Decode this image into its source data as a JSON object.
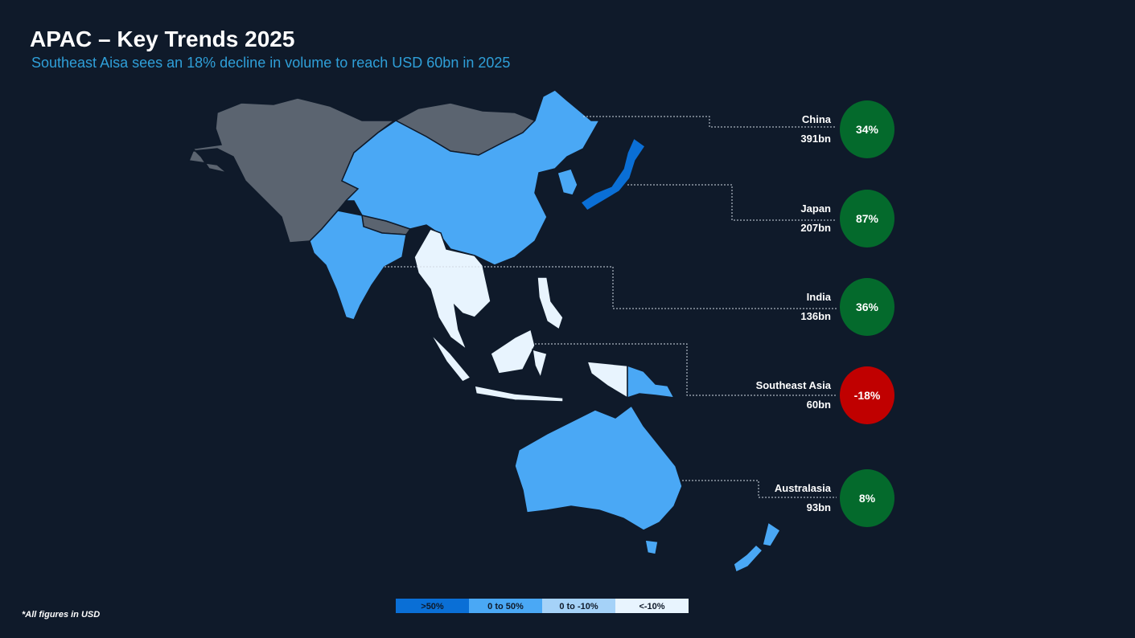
{
  "header": {
    "title": "APAC – Key Trends 2025",
    "subtitle": "Southeast Aisa sees an 18% decline in volume to reach USD 60bn in 2025"
  },
  "regions": [
    {
      "name": "China",
      "volume": "391bn",
      "change": "34%",
      "color": "#046a2c"
    },
    {
      "name": "Japan",
      "volume": "207bn",
      "change": "87%",
      "color": "#046a2c"
    },
    {
      "name": "India",
      "volume": "136bn",
      "change": "36%",
      "color": "#046a2c"
    },
    {
      "name": "Southeast Asia",
      "volume": "60bn",
      "change": "-18%",
      "color": "#c00000"
    },
    {
      "name": "Australasia",
      "volume": "93bn",
      "change": "8%",
      "color": "#046a2c"
    }
  ],
  "legend": [
    {
      "label": ">50%",
      "color": "#0a6fd6"
    },
    {
      "label": "0 to 50%",
      "color": "#4aa8f5"
    },
    {
      "label": "0 to -10%",
      "color": "#a5d2f8"
    },
    {
      "label": "<-10%",
      "color": "#e8f4fe"
    }
  ],
  "footnote": "*All figures in USD"
}
